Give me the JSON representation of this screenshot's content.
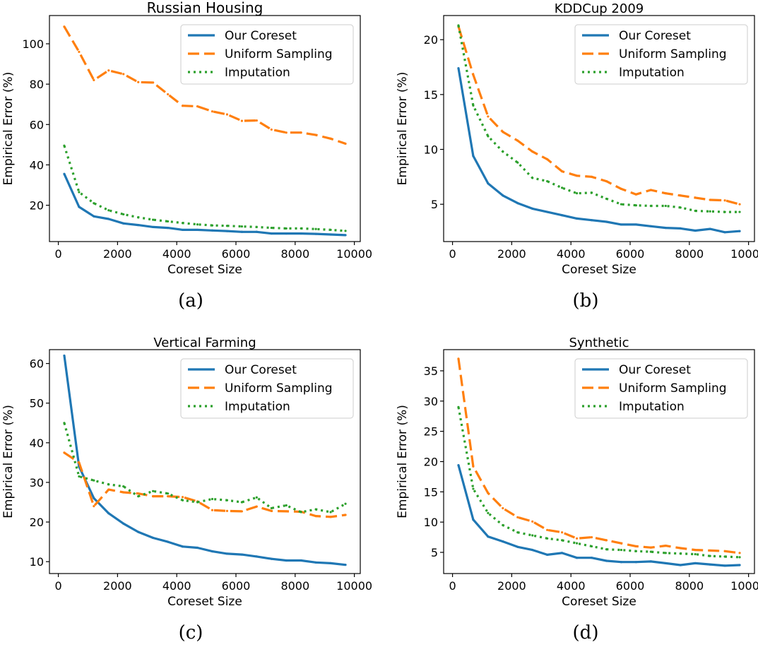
{
  "colors": {
    "coreset": "#1f77b4",
    "uniform": "#ff7f0e",
    "imputation": "#2ca02c"
  },
  "chart_data": [
    {
      "type": "line",
      "title": "Russian Housing",
      "caption": "(a)",
      "xlabel": "Coreset Size",
      "ylabel": "Empirical Error (%)",
      "xlim": [
        -300,
        10200
      ],
      "ylim": [
        2,
        114
      ],
      "xticks": [
        0,
        2000,
        4000,
        6000,
        8000,
        10000
      ],
      "yticks": [
        20,
        40,
        60,
        80,
        100
      ],
      "x": [
        200,
        700,
        1200,
        1700,
        2200,
        2700,
        3200,
        3700,
        4200,
        4700,
        5200,
        5700,
        6200,
        6700,
        7200,
        7700,
        8200,
        8700,
        9200,
        9700
      ],
      "legend_position": "upper right",
      "series": [
        {
          "name": "Our Coreset",
          "style": "solid",
          "color_key": "coreset",
          "values": [
            35.5,
            19.2,
            14.5,
            13.2,
            11.0,
            10.2,
            9.2,
            8.8,
            7.8,
            7.8,
            7.5,
            7.2,
            6.8,
            6.8,
            6.0,
            6.0,
            6.0,
            5.8,
            5.5,
            5.2
          ]
        },
        {
          "name": "Uniform Sampling",
          "style": "dashed",
          "color_key": "uniform",
          "values": [
            108.5,
            96,
            82,
            86.8,
            85,
            81,
            80.8,
            75,
            69.3,
            69,
            66.5,
            65,
            61.8,
            62,
            57.5,
            56,
            56,
            54.8,
            53,
            50.5
          ]
        },
        {
          "name": "Imputation",
          "style": "dotted",
          "color_key": "imputation",
          "values": [
            49.5,
            26.5,
            21,
            17.5,
            15.5,
            14,
            12.8,
            12,
            11.2,
            10.5,
            10,
            9.8,
            9.5,
            9.2,
            8.8,
            8.5,
            8.5,
            8.2,
            7.8,
            7.3
          ]
        }
      ]
    },
    {
      "type": "line",
      "title": "KDDCup 2009",
      "caption": "(b)",
      "xlabel": "Coreset Size",
      "ylabel": "Empirical Error (%)",
      "xlim": [
        -300,
        10200
      ],
      "ylim": [
        1.6,
        22.2
      ],
      "xticks": [
        0,
        2000,
        4000,
        6000,
        8000,
        10000
      ],
      "yticks": [
        5,
        10,
        15,
        20
      ],
      "x": [
        200,
        700,
        1200,
        1700,
        2200,
        2700,
        3200,
        3700,
        4200,
        4700,
        5200,
        5700,
        6200,
        6700,
        7200,
        7700,
        8200,
        8700,
        9200,
        9700
      ],
      "legend_position": "upper right",
      "series": [
        {
          "name": "Our Coreset",
          "style": "solid",
          "color_key": "coreset",
          "values": [
            17.4,
            9.4,
            6.9,
            5.8,
            5.1,
            4.6,
            4.3,
            4.0,
            3.7,
            3.55,
            3.4,
            3.15,
            3.15,
            3.0,
            2.85,
            2.8,
            2.6,
            2.75,
            2.45,
            2.55
          ]
        },
        {
          "name": "Uniform Sampling",
          "style": "dashed",
          "color_key": "uniform",
          "values": [
            21.2,
            16.8,
            13.0,
            11.6,
            10.8,
            9.8,
            9.1,
            8.0,
            7.6,
            7.5,
            7.1,
            6.4,
            5.9,
            6.3,
            6.0,
            5.8,
            5.6,
            5.4,
            5.35,
            5.0
          ]
        },
        {
          "name": "Imputation",
          "style": "dotted",
          "color_key": "imputation",
          "values": [
            21.3,
            14.0,
            11.2,
            9.8,
            8.8,
            7.4,
            7.1,
            6.5,
            6.0,
            6.05,
            5.5,
            5.0,
            4.9,
            4.85,
            4.85,
            4.7,
            4.4,
            4.35,
            4.3,
            4.3
          ]
        }
      ]
    },
    {
      "type": "line",
      "title": "Vertical Farming",
      "caption": "(c)",
      "xlabel": "Coreset Size",
      "ylabel": "Empirical Error (%)",
      "xlim": [
        -300,
        10200
      ],
      "ylim": [
        7,
        63.5
      ],
      "xticks": [
        0,
        2000,
        4000,
        6000,
        8000,
        10000
      ],
      "yticks": [
        10,
        20,
        30,
        40,
        50,
        60
      ],
      "x": [
        200,
        700,
        1200,
        1700,
        2200,
        2700,
        3200,
        3700,
        4200,
        4700,
        5200,
        5700,
        6200,
        6700,
        7200,
        7700,
        8200,
        8700,
        9200,
        9700
      ],
      "legend_position": "upper right",
      "series": [
        {
          "name": "Our Coreset",
          "style": "solid",
          "color_key": "coreset",
          "values": [
            62,
            34,
            26,
            22.2,
            19.6,
            17.5,
            16.0,
            15.0,
            13.8,
            13.5,
            12.6,
            12.0,
            11.8,
            11.3,
            10.7,
            10.3,
            10.3,
            9.8,
            9.6,
            9.2
          ]
        },
        {
          "name": "Uniform Sampling",
          "style": "dashed",
          "color_key": "uniform",
          "values": [
            37.5,
            35,
            24,
            28.2,
            27.5,
            27.2,
            26.5,
            26.5,
            26.3,
            25.2,
            23.0,
            22.8,
            22.7,
            23.9,
            22.8,
            22.7,
            22.6,
            21.5,
            21.3,
            21.8
          ]
        },
        {
          "name": "Imputation",
          "style": "dotted",
          "color_key": "imputation",
          "values": [
            45,
            31.5,
            30.5,
            29.5,
            29,
            26.5,
            27.8,
            27.2,
            25.5,
            25,
            25.8,
            25.5,
            25.0,
            26.2,
            23.5,
            24.2,
            22.5,
            23.2,
            22.5,
            24.6
          ]
        }
      ]
    },
    {
      "type": "line",
      "title": "Synthetic",
      "caption": "(d)",
      "xlabel": "Coreset Size",
      "ylabel": "Empirical Error (%)",
      "xlim": [
        -300,
        10200
      ],
      "ylim": [
        1.5,
        38.5
      ],
      "xticks": [
        0,
        2000,
        4000,
        6000,
        8000,
        10000
      ],
      "yticks": [
        5,
        10,
        15,
        20,
        25,
        30,
        35
      ],
      "x": [
        200,
        700,
        1200,
        1700,
        2200,
        2700,
        3200,
        3700,
        4200,
        4700,
        5200,
        5700,
        6200,
        6700,
        7200,
        7700,
        8200,
        8700,
        9200,
        9700
      ],
      "legend_position": "upper right",
      "series": [
        {
          "name": "Our Coreset",
          "style": "solid",
          "color_key": "coreset",
          "values": [
            19.4,
            10.4,
            7.6,
            6.8,
            5.9,
            5.4,
            4.6,
            4.9,
            4.1,
            4.1,
            3.6,
            3.4,
            3.4,
            3.5,
            3.2,
            2.9,
            3.2,
            3.0,
            2.8,
            2.9
          ]
        },
        {
          "name": "Uniform Sampling",
          "style": "dashed",
          "color_key": "uniform",
          "values": [
            37,
            19.2,
            14.8,
            12.3,
            10.8,
            10.1,
            8.7,
            8.3,
            7.3,
            7.5,
            7.0,
            6.5,
            6.0,
            5.8,
            6.1,
            5.7,
            5.4,
            5.3,
            5.2,
            4.9
          ]
        },
        {
          "name": "Imputation",
          "style": "dotted",
          "color_key": "imputation",
          "values": [
            29,
            15.5,
            11.5,
            9.5,
            8.3,
            7.8,
            7.3,
            7.0,
            6.5,
            6.0,
            5.5,
            5.4,
            5.2,
            5.1,
            4.9,
            4.8,
            4.7,
            4.4,
            4.3,
            4.2
          ]
        }
      ]
    }
  ]
}
